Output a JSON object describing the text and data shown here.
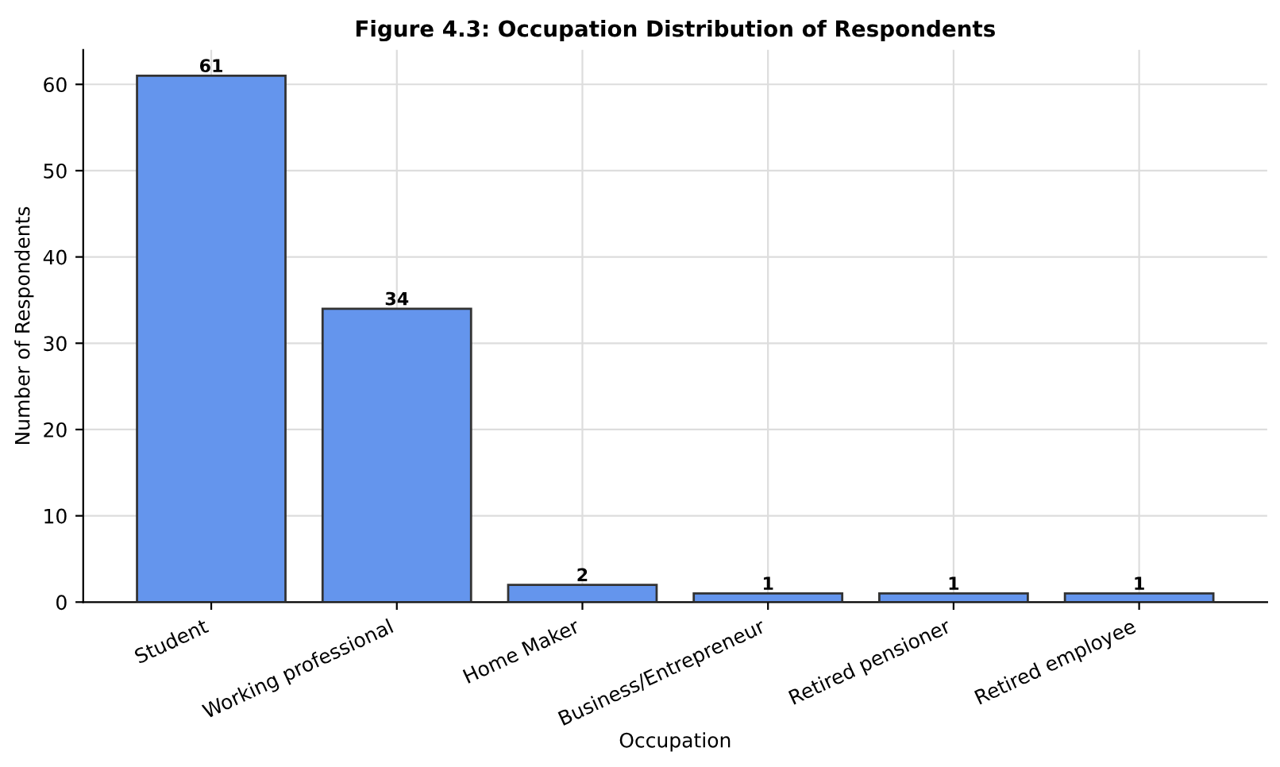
{
  "chart_data": {
    "type": "bar",
    "title": "Figure 4.3: Occupation Distribution of Respondents",
    "xlabel": "Occupation",
    "ylabel": "Number of Respondents",
    "categories": [
      "Student",
      "Working professional",
      "Home Maker",
      "Business/Entrepreneur",
      "Retired pensioner",
      "Retired employee"
    ],
    "values": [
      61,
      34,
      2,
      1,
      1,
      1
    ],
    "color": "#6495ed",
    "ylim": [
      0,
      64
    ],
    "yticks": [
      0,
      10,
      20,
      30,
      40,
      50,
      60
    ],
    "grid": true,
    "data_labels": true
  }
}
